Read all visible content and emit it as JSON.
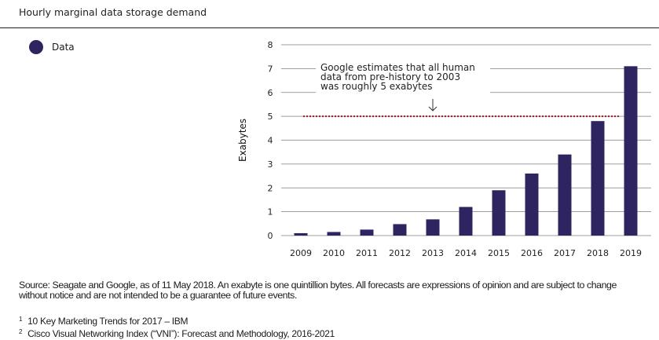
{
  "title": "Hourly marginal data storage demand",
  "colors": {
    "bar": "#2e2460",
    "reference": "#b0161f",
    "grid": "#7f7f7f"
  },
  "chart_data": {
    "type": "bar",
    "categories": [
      "2009",
      "2010",
      "2011",
      "2012",
      "2013",
      "2014",
      "2015",
      "2016",
      "2017",
      "2018",
      "2019"
    ],
    "series": [
      {
        "name": "Data",
        "values": [
          0.1,
          0.15,
          0.25,
          0.48,
          0.68,
          1.2,
          1.9,
          2.6,
          3.4,
          4.8,
          7.1
        ]
      }
    ],
    "ylabel": "Exabytes",
    "ylim": [
      0,
      8
    ],
    "yticks": [
      0,
      1,
      2,
      3,
      4,
      5,
      6,
      7,
      8
    ],
    "grid": true,
    "legend": "top-left",
    "reference_line": {
      "y": 5,
      "style": "dotted"
    },
    "annotation": {
      "lines": [
        "Google estimates that all human",
        "data from pre-history to 2003",
        "was roughly 5 exabytes"
      ]
    }
  },
  "source_lines": [
    "Source: Seagate and Google, as of 11 May 2018. An exabyte is one quintillion bytes. All forecasts are expressions of opinion and are subject to change",
    "without notice and are not intended to be a guarantee of future events."
  ],
  "footnotes": [
    {
      "num": "1",
      "text": "10 Key Marketing Trends for 2017 – IBM"
    },
    {
      "num": "2",
      "text": "Cisco Visual Networking Index (“VNI”): Forecast and Methodology, 2016-2021"
    }
  ]
}
